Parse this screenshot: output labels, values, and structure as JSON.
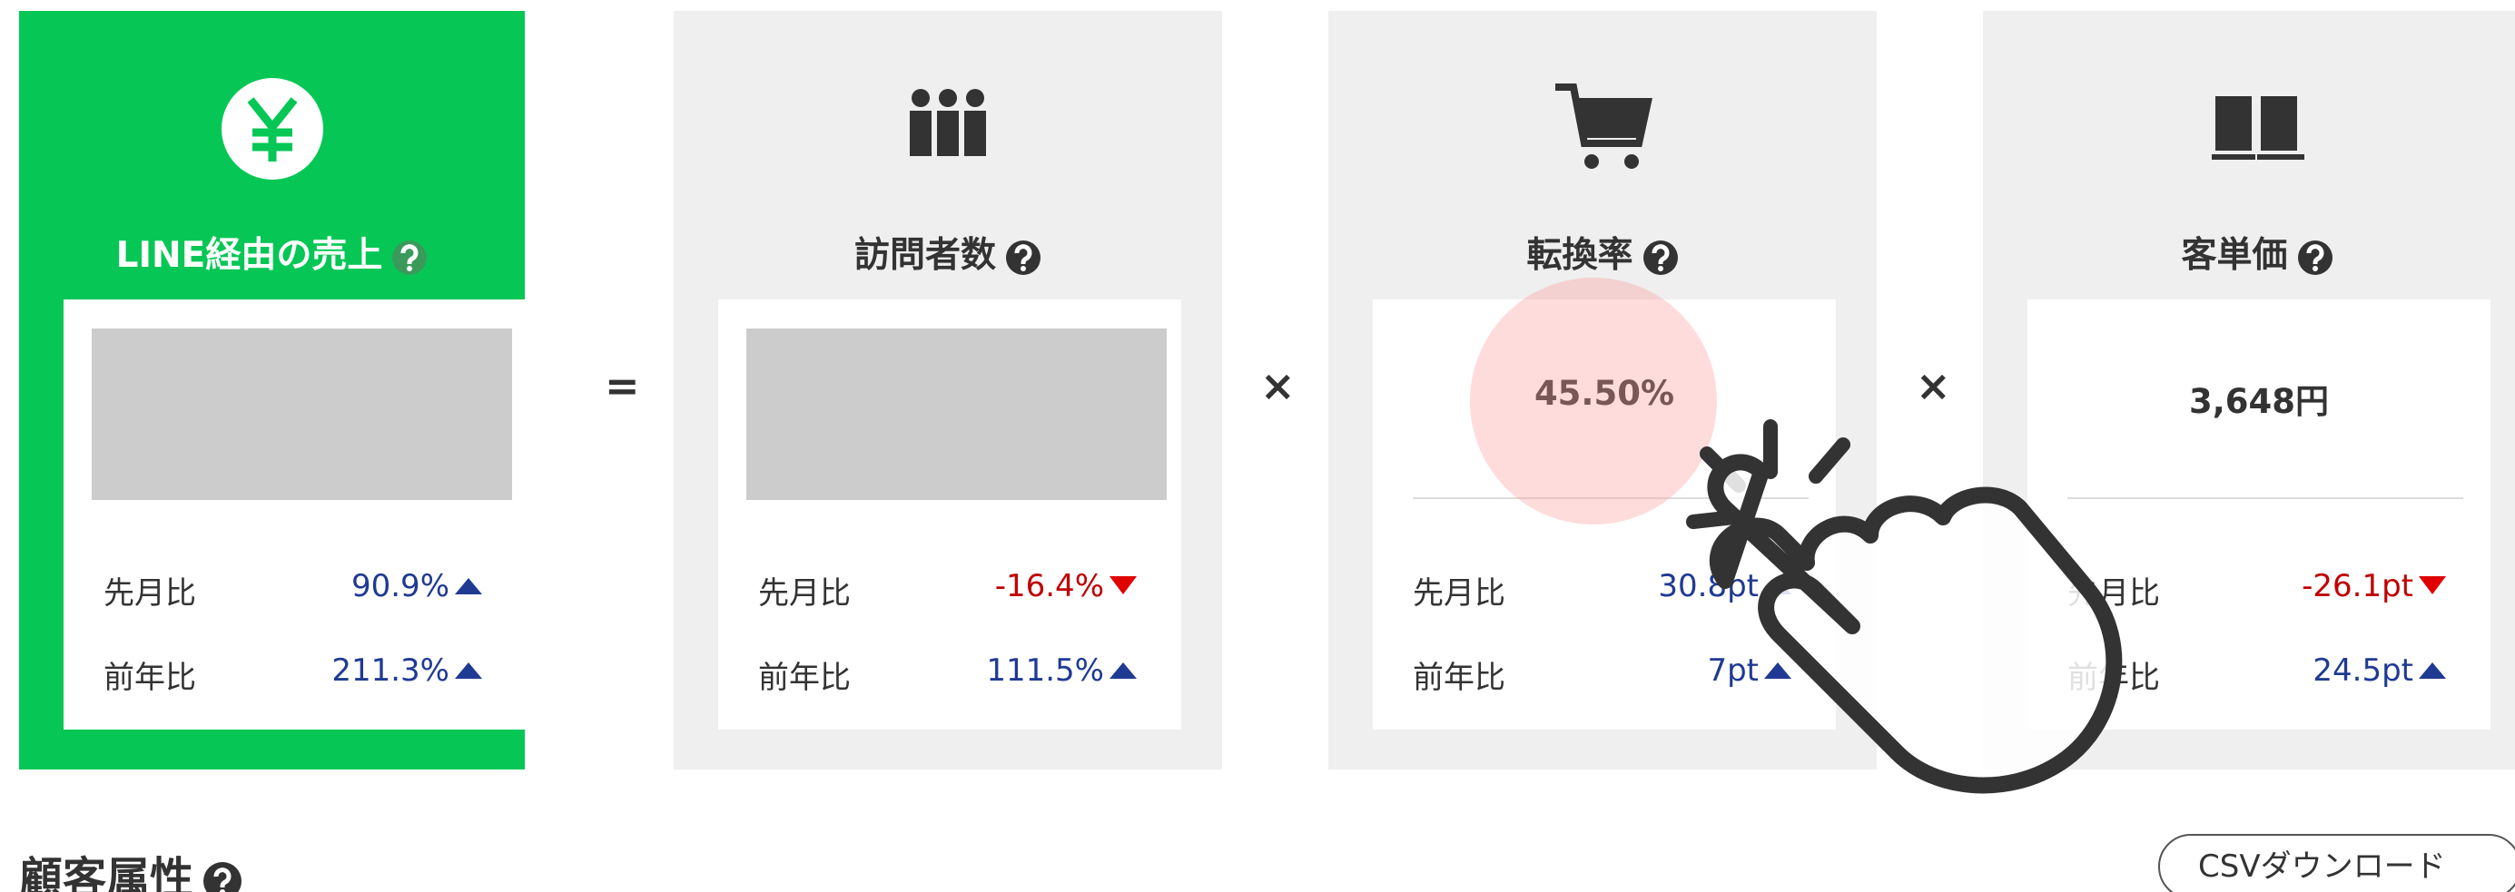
{
  "cards": [
    {
      "title": "LINE経由の売上",
      "value": null,
      "rows": [
        {
          "label": "先月比",
          "value": "90.9%",
          "trend": "up"
        },
        {
          "label": "前年比",
          "value": "211.3%",
          "trend": "up"
        }
      ]
    },
    {
      "title": "訪問者数",
      "value": null,
      "rows": [
        {
          "label": "先月比",
          "value": "-16.4%",
          "trend": "down"
        },
        {
          "label": "前年比",
          "value": "111.5%",
          "trend": "up"
        }
      ]
    },
    {
      "title": "転換率",
      "value": "45.50%",
      "rows": [
        {
          "label": "先月比",
          "value": "30.8pt",
          "trend": "up"
        },
        {
          "label": "前年比",
          "value": "7pt",
          "trend": "up"
        }
      ]
    },
    {
      "title": "客単価",
      "value": "3,648円",
      "rows": [
        {
          "label": "先月比",
          "value": "-26.1pt",
          "trend": "down"
        },
        {
          "label": "前年比",
          "value": "24.5pt",
          "trend": "up"
        }
      ]
    }
  ],
  "operators": [
    "=",
    "×",
    "×"
  ],
  "section": {
    "title": "顧客属性",
    "button": "CSVダウンロード"
  }
}
